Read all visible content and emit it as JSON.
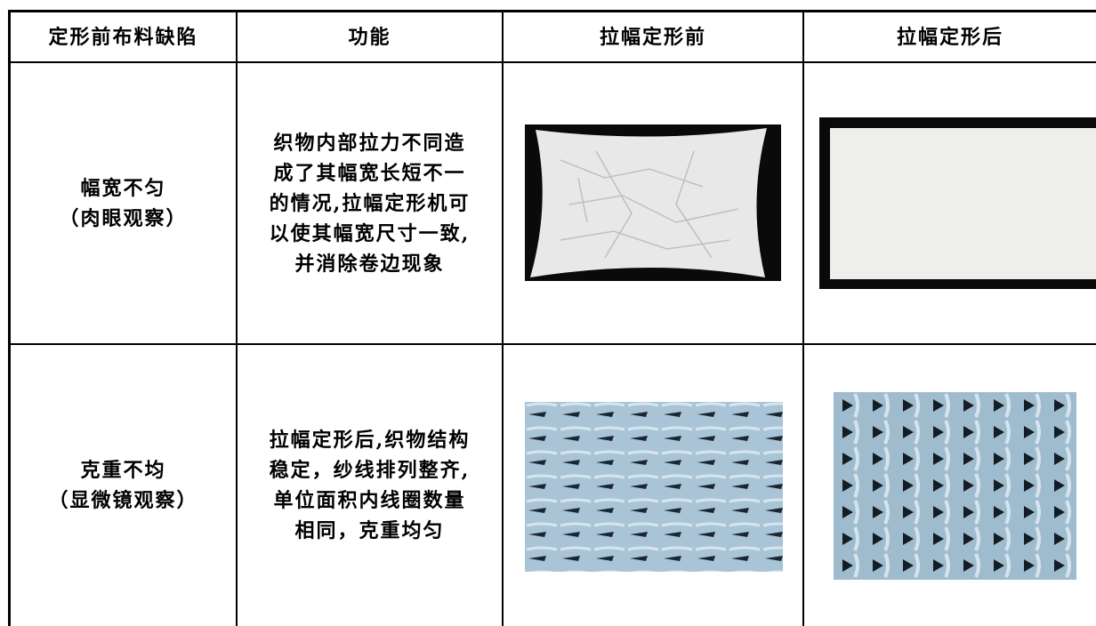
{
  "table": {
    "header": [
      "定形前布料缺陷",
      "功能",
      "拉幅定形前",
      "拉幅定形后"
    ],
    "rows": [
      [
        [
          "幅宽不匀",
          "（肉眼观察）"
        ],
        [
          "织物内部拉力不同造",
          "成了其幅宽长短不一",
          "的情况,拉幅定形机可",
          "以使其幅宽尺寸一致,",
          "并消除卷边现象"
        ]
      ],
      [
        [
          "克重不均",
          "（显微镜观察）"
        ],
        [
          "拉幅定形后,织物结构",
          "稳定，纱线排列整齐,",
          "单位面积内线圈数量",
          "相同，克重均匀"
        ]
      ]
    ]
  }
}
